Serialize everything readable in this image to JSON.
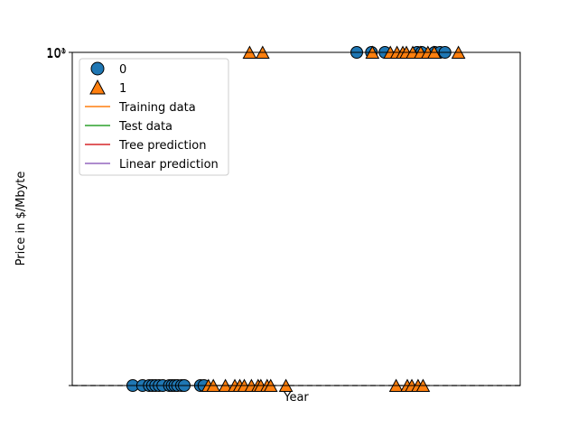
{
  "chart_data": {
    "type": "scatter",
    "title": "",
    "xlabel": "Year",
    "ylabel": "Price in $/Mbyte",
    "y_tick_labels": [
      "10¹",
      "10⁰"
    ],
    "ylim": [
      0,
      1
    ],
    "xlim": [
      0,
      100
    ],
    "grid": false,
    "legend_placement": "upper-left",
    "reference_line": {
      "y": 0,
      "style": "dashed",
      "color": "#000000"
    },
    "series": [
      {
        "name": "0",
        "marker": "circle",
        "color": "#1f77b4",
        "points": [
          [
            13.5,
            0
          ],
          [
            15.7,
            0
          ],
          [
            17.2,
            0
          ],
          [
            17.9,
            0
          ],
          [
            18.6,
            0
          ],
          [
            19.4,
            0
          ],
          [
            20.2,
            0
          ],
          [
            21.7,
            0
          ],
          [
            22.3,
            0
          ],
          [
            22.9,
            0
          ],
          [
            23.5,
            0
          ],
          [
            24.4,
            0
          ],
          [
            25.0,
            0
          ],
          [
            28.6,
            0
          ],
          [
            29.4,
            0
          ],
          [
            63.5,
            1
          ],
          [
            66.8,
            1
          ],
          [
            69.8,
            1
          ],
          [
            77.0,
            1
          ],
          [
            78.0,
            1
          ],
          [
            80.9,
            1
          ],
          [
            82.1,
            1
          ],
          [
            83.2,
            1
          ]
        ]
      },
      {
        "name": "1",
        "marker": "triangle",
        "color": "#ff7f0e",
        "points": [
          [
            30.4,
            0
          ],
          [
            31.5,
            0
          ],
          [
            34.2,
            0
          ],
          [
            36.3,
            0
          ],
          [
            37.4,
            0
          ],
          [
            38.4,
            0
          ],
          [
            40.0,
            0
          ],
          [
            41.5,
            0
          ],
          [
            42.1,
            0
          ],
          [
            43.5,
            0
          ],
          [
            44.3,
            0
          ],
          [
            47.7,
            0
          ],
          [
            72.3,
            0
          ],
          [
            74.8,
            0
          ],
          [
            75.8,
            0
          ],
          [
            77.2,
            0
          ],
          [
            78.3,
            0
          ],
          [
            39.6,
            1
          ],
          [
            42.5,
            1
          ],
          [
            67.0,
            1
          ],
          [
            71.0,
            1
          ],
          [
            72.5,
            1
          ],
          [
            73.8,
            1
          ],
          [
            74.6,
            1
          ],
          [
            76.0,
            1
          ],
          [
            77.8,
            1
          ],
          [
            79.4,
            1
          ],
          [
            80.8,
            1
          ],
          [
            86.2,
            1
          ]
        ]
      }
    ],
    "line_series": [
      {
        "name": "Training data",
        "color": "#ff7f0e"
      },
      {
        "name": "Test data",
        "color": "#2ca02c"
      },
      {
        "name": "Tree prediction",
        "color": "#d62728"
      },
      {
        "name": "Linear prediction",
        "color": "#9467bd"
      }
    ]
  }
}
